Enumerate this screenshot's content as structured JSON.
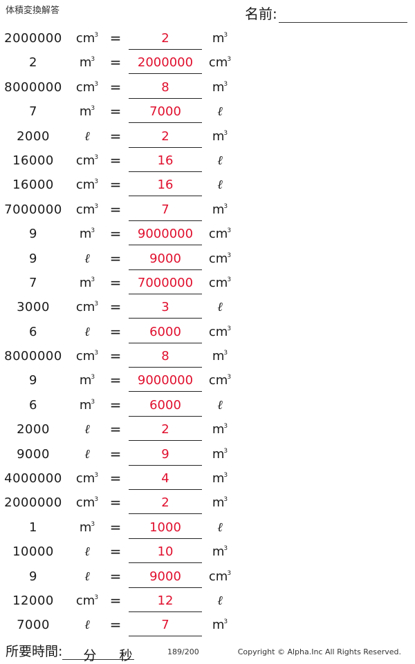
{
  "header": {
    "title": "体積変換解答",
    "name_label": "名前:"
  },
  "units": {
    "cm3_base": "cm",
    "m3_base": "m",
    "exp": "3",
    "l": "ℓ"
  },
  "rows": [
    {
      "value": "2000000",
      "from": "cm3",
      "answer": "2",
      "to": "m3"
    },
    {
      "value": "2",
      "from": "m3",
      "answer": "2000000",
      "to": "cm3"
    },
    {
      "value": "8000000",
      "from": "cm3",
      "answer": "8",
      "to": "m3"
    },
    {
      "value": "7",
      "from": "m3",
      "answer": "7000",
      "to": "l"
    },
    {
      "value": "2000",
      "from": "l",
      "answer": "2",
      "to": "m3"
    },
    {
      "value": "16000",
      "from": "cm3",
      "answer": "16",
      "to": "l"
    },
    {
      "value": "16000",
      "from": "cm3",
      "answer": "16",
      "to": "l"
    },
    {
      "value": "7000000",
      "from": "cm3",
      "answer": "7",
      "to": "m3"
    },
    {
      "value": "9",
      "from": "m3",
      "answer": "9000000",
      "to": "cm3"
    },
    {
      "value": "9",
      "from": "l",
      "answer": "9000",
      "to": "cm3"
    },
    {
      "value": "7",
      "from": "m3",
      "answer": "7000000",
      "to": "cm3"
    },
    {
      "value": "3000",
      "from": "cm3",
      "answer": "3",
      "to": "l"
    },
    {
      "value": "6",
      "from": "l",
      "answer": "6000",
      "to": "cm3"
    },
    {
      "value": "8000000",
      "from": "cm3",
      "answer": "8",
      "to": "m3"
    },
    {
      "value": "9",
      "from": "m3",
      "answer": "9000000",
      "to": "cm3"
    },
    {
      "value": "6",
      "from": "m3",
      "answer": "6000",
      "to": "l"
    },
    {
      "value": "2000",
      "from": "l",
      "answer": "2",
      "to": "m3"
    },
    {
      "value": "9000",
      "from": "l",
      "answer": "9",
      "to": "m3"
    },
    {
      "value": "4000000",
      "from": "cm3",
      "answer": "4",
      "to": "m3"
    },
    {
      "value": "2000000",
      "from": "cm3",
      "answer": "2",
      "to": "m3"
    },
    {
      "value": "1",
      "from": "m3",
      "answer": "1000",
      "to": "l"
    },
    {
      "value": "10000",
      "from": "l",
      "answer": "10",
      "to": "m3"
    },
    {
      "value": "9",
      "from": "l",
      "answer": "9000",
      "to": "cm3"
    },
    {
      "value": "12000",
      "from": "cm3",
      "answer": "12",
      "to": "l"
    },
    {
      "value": "7000",
      "from": "l",
      "answer": "7",
      "to": "m3"
    }
  ],
  "footer": {
    "time_label": "所要時間:",
    "minutes_label": "分",
    "seconds_label": "秒",
    "page": "189/200",
    "copyright": "Copyright © Alpha.Inc All Rights Reserved."
  },
  "colors": {
    "answer": "#e0102e",
    "text": "#1a1a1a"
  }
}
